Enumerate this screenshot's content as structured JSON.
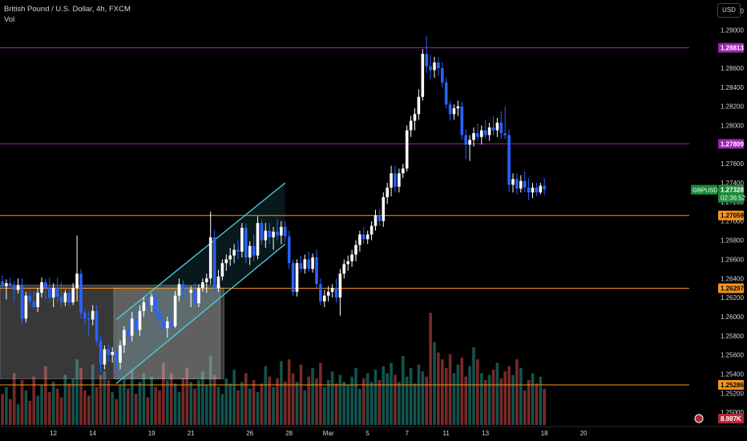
{
  "legend": {
    "symbol_line": "British Pound / U.S. Dollar, 4h, FXCM",
    "volume_label": "Vol"
  },
  "currency_button": "USD",
  "chart_data": {
    "type": "candlestick",
    "symbol": "GBPUSD",
    "interval": "4h",
    "y_range": [
      1.2485,
      1.2928
    ],
    "y_ticks": [
      "1.29200",
      "1.29000",
      "1.28800",
      "1.28600",
      "1.28400",
      "1.28200",
      "1.28000",
      "1.27800",
      "1.27600",
      "1.27400",
      "1.27200",
      "1.27000",
      "1.26800",
      "1.26600",
      "1.26400",
      "1.26200",
      "1.26000",
      "1.25800",
      "1.25600",
      "1.25400",
      "1.25200",
      "1.25000"
    ],
    "x_ticks": [
      {
        "label": "12",
        "index": 13
      },
      {
        "label": "14",
        "index": 23
      },
      {
        "label": "19",
        "index": 38
      },
      {
        "label": "21",
        "index": 48
      },
      {
        "label": "26",
        "index": 63
      },
      {
        "label": "28",
        "index": 73
      },
      {
        "label": "Mar",
        "index": 83
      },
      {
        "label": "5",
        "index": 93
      },
      {
        "label": "7",
        "index": 103
      },
      {
        "label": "11",
        "index": 113
      },
      {
        "label": "13",
        "index": 123
      },
      {
        "label": "18",
        "index": 138
      },
      {
        "label": "20",
        "index": 148
      }
    ],
    "horizontal_levels": [
      {
        "value": 1.28813,
        "label": "1.28813",
        "color": "#9c27b0"
      },
      {
        "value": 1.27809,
        "label": "1.27809",
        "color": "#9c27b0"
      },
      {
        "value": 1.27059,
        "label": "1.27059",
        "color": "#f7931a"
      },
      {
        "value": 1.26297,
        "label": "1.26297",
        "color": "#f7931a"
      },
      {
        "value": 1.25286,
        "label": "1.25286",
        "color": "#f7931a"
      }
    ],
    "last_price": {
      "symbol": "GBPUSD",
      "value": "1.27328",
      "countdown": "02:36:52",
      "color": "#1b8a3a"
    },
    "volume_last": {
      "value": "8.987K",
      "color": "#b22833"
    },
    "range_boxes": [
      {
        "from_index": 0,
        "to_index": 55,
        "top": 1.2633,
        "bottom": 1.2535
      },
      {
        "from_index": 29,
        "to_index": 56,
        "top": 1.263,
        "bottom": 1.2535
      }
    ],
    "channel": {
      "color": "#4dd0e1",
      "upper": [
        {
          "index": 29,
          "value": 1.2597
        },
        {
          "index": 72,
          "value": 1.274
        }
      ],
      "lower": [
        {
          "index": 29,
          "value": 1.253
        },
        {
          "index": 72,
          "value": 1.2676
        }
      ]
    },
    "candles": [
      {
        "o": 1.2637,
        "h": 1.2643,
        "l": 1.2628,
        "c": 1.2632
      },
      {
        "o": 1.2632,
        "h": 1.2639,
        "l": 1.2618,
        "c": 1.2635
      },
      {
        "o": 1.2635,
        "h": 1.2641,
        "l": 1.2629,
        "c": 1.2633
      },
      {
        "o": 1.2633,
        "h": 1.2637,
        "l": 1.2615,
        "c": 1.2628
      },
      {
        "o": 1.2628,
        "h": 1.264,
        "l": 1.2624,
        "c": 1.2633
      },
      {
        "o": 1.2633,
        "h": 1.264,
        "l": 1.2592,
        "c": 1.2598
      },
      {
        "o": 1.2598,
        "h": 1.2626,
        "l": 1.2594,
        "c": 1.2622
      },
      {
        "o": 1.2622,
        "h": 1.2627,
        "l": 1.2611,
        "c": 1.2616
      },
      {
        "o": 1.2616,
        "h": 1.2627,
        "l": 1.2608,
        "c": 1.261
      },
      {
        "o": 1.261,
        "h": 1.263,
        "l": 1.2605,
        "c": 1.2625
      },
      {
        "o": 1.2625,
        "h": 1.2641,
        "l": 1.262,
        "c": 1.2636
      },
      {
        "o": 1.2636,
        "h": 1.264,
        "l": 1.2618,
        "c": 1.263
      },
      {
        "o": 1.263,
        "h": 1.2641,
        "l": 1.2615,
        "c": 1.262
      },
      {
        "o": 1.262,
        "h": 1.2635,
        "l": 1.261,
        "c": 1.263
      },
      {
        "o": 1.263,
        "h": 1.2641,
        "l": 1.2615,
        "c": 1.2621
      },
      {
        "o": 1.2621,
        "h": 1.2636,
        "l": 1.2609,
        "c": 1.2615
      },
      {
        "o": 1.2615,
        "h": 1.2628,
        "l": 1.2611,
        "c": 1.2625
      },
      {
        "o": 1.2625,
        "h": 1.2631,
        "l": 1.261,
        "c": 1.2615
      },
      {
        "o": 1.2615,
        "h": 1.2635,
        "l": 1.2612,
        "c": 1.263
      },
      {
        "o": 1.263,
        "h": 1.2685,
        "l": 1.2616,
        "c": 1.2645
      },
      {
        "o": 1.2645,
        "h": 1.265,
        "l": 1.2598,
        "c": 1.2604
      },
      {
        "o": 1.2604,
        "h": 1.2608,
        "l": 1.2592,
        "c": 1.2598
      },
      {
        "o": 1.2598,
        "h": 1.2605,
        "l": 1.258,
        "c": 1.2597
      },
      {
        "o": 1.2597,
        "h": 1.2612,
        "l": 1.2591,
        "c": 1.2606
      },
      {
        "o": 1.2606,
        "h": 1.2612,
        "l": 1.257,
        "c": 1.2575
      },
      {
        "o": 1.2575,
        "h": 1.258,
        "l": 1.2542,
        "c": 1.255
      },
      {
        "o": 1.255,
        "h": 1.257,
        "l": 1.2545,
        "c": 1.2566
      },
      {
        "o": 1.2566,
        "h": 1.2572,
        "l": 1.2552,
        "c": 1.256
      },
      {
        "o": 1.256,
        "h": 1.2568,
        "l": 1.2552,
        "c": 1.2563
      },
      {
        "o": 1.2563,
        "h": 1.2567,
        "l": 1.254,
        "c": 1.2552
      },
      {
        "o": 1.2552,
        "h": 1.2575,
        "l": 1.2545,
        "c": 1.257
      },
      {
        "o": 1.257,
        "h": 1.259,
        "l": 1.2562,
        "c": 1.2586
      },
      {
        "o": 1.2586,
        "h": 1.2598,
        "l": 1.2575,
        "c": 1.258
      },
      {
        "o": 1.258,
        "h": 1.2605,
        "l": 1.2574,
        "c": 1.2598
      },
      {
        "o": 1.2598,
        "h": 1.2608,
        "l": 1.2582,
        "c": 1.2586
      },
      {
        "o": 1.2586,
        "h": 1.2612,
        "l": 1.258,
        "c": 1.2606
      },
      {
        "o": 1.2606,
        "h": 1.262,
        "l": 1.26,
        "c": 1.2615
      },
      {
        "o": 1.2615,
        "h": 1.2626,
        "l": 1.261,
        "c": 1.2612
      },
      {
        "o": 1.2612,
        "h": 1.2624,
        "l": 1.2605,
        "c": 1.2621
      },
      {
        "o": 1.2621,
        "h": 1.2626,
        "l": 1.2598,
        "c": 1.2604
      },
      {
        "o": 1.2604,
        "h": 1.261,
        "l": 1.259,
        "c": 1.2596
      },
      {
        "o": 1.2596,
        "h": 1.26,
        "l": 1.2584,
        "c": 1.2588
      },
      {
        "o": 1.2588,
        "h": 1.26,
        "l": 1.2578,
        "c": 1.2595
      },
      {
        "o": 1.2595,
        "h": 1.2603,
        "l": 1.2584,
        "c": 1.259
      },
      {
        "o": 1.259,
        "h": 1.2627,
        "l": 1.2588,
        "c": 1.2622
      },
      {
        "o": 1.2622,
        "h": 1.264,
        "l": 1.2616,
        "c": 1.2634
      },
      {
        "o": 1.2634,
        "h": 1.2638,
        "l": 1.2618,
        "c": 1.2626
      },
      {
        "o": 1.2626,
        "h": 1.2633,
        "l": 1.2619,
        "c": 1.2625
      },
      {
        "o": 1.2625,
        "h": 1.2632,
        "l": 1.261,
        "c": 1.2628
      },
      {
        "o": 1.2628,
        "h": 1.2635,
        "l": 1.2611,
        "c": 1.2614
      },
      {
        "o": 1.2614,
        "h": 1.2634,
        "l": 1.261,
        "c": 1.263
      },
      {
        "o": 1.263,
        "h": 1.264,
        "l": 1.2626,
        "c": 1.2636
      },
      {
        "o": 1.2636,
        "h": 1.2645,
        "l": 1.2625,
        "c": 1.264
      },
      {
        "o": 1.264,
        "h": 1.271,
        "l": 1.2634,
        "c": 1.2683
      },
      {
        "o": 1.2683,
        "h": 1.2691,
        "l": 1.2624,
        "c": 1.263
      },
      {
        "o": 1.263,
        "h": 1.2649,
        "l": 1.2626,
        "c": 1.2642
      },
      {
        "o": 1.2642,
        "h": 1.266,
        "l": 1.2638,
        "c": 1.2656
      },
      {
        "o": 1.2656,
        "h": 1.2665,
        "l": 1.2648,
        "c": 1.266
      },
      {
        "o": 1.266,
        "h": 1.2672,
        "l": 1.2653,
        "c": 1.2664
      },
      {
        "o": 1.2664,
        "h": 1.2676,
        "l": 1.2656,
        "c": 1.267
      },
      {
        "o": 1.267,
        "h": 1.268,
        "l": 1.266,
        "c": 1.2668
      },
      {
        "o": 1.2668,
        "h": 1.2698,
        "l": 1.2662,
        "c": 1.2693
      },
      {
        "o": 1.2693,
        "h": 1.2697,
        "l": 1.2656,
        "c": 1.2662
      },
      {
        "o": 1.2662,
        "h": 1.2679,
        "l": 1.2654,
        "c": 1.2674
      },
      {
        "o": 1.2674,
        "h": 1.2686,
        "l": 1.2658,
        "c": 1.2664
      },
      {
        "o": 1.2664,
        "h": 1.2705,
        "l": 1.266,
        "c": 1.2698
      },
      {
        "o": 1.2698,
        "h": 1.2702,
        "l": 1.2675,
        "c": 1.268
      },
      {
        "o": 1.268,
        "h": 1.2698,
        "l": 1.2672,
        "c": 1.269
      },
      {
        "o": 1.269,
        "h": 1.2698,
        "l": 1.2676,
        "c": 1.2683
      },
      {
        "o": 1.2683,
        "h": 1.2694,
        "l": 1.267,
        "c": 1.2689
      },
      {
        "o": 1.2689,
        "h": 1.2702,
        "l": 1.268,
        "c": 1.2685
      },
      {
        "o": 1.2685,
        "h": 1.27,
        "l": 1.2676,
        "c": 1.2694
      },
      {
        "o": 1.2694,
        "h": 1.27,
        "l": 1.2678,
        "c": 1.2684
      },
      {
        "o": 1.2684,
        "h": 1.269,
        "l": 1.265,
        "c": 1.2656
      },
      {
        "o": 1.2656,
        "h": 1.266,
        "l": 1.2622,
        "c": 1.2626
      },
      {
        "o": 1.2626,
        "h": 1.266,
        "l": 1.2621,
        "c": 1.2656
      },
      {
        "o": 1.2656,
        "h": 1.2664,
        "l": 1.2646,
        "c": 1.265
      },
      {
        "o": 1.265,
        "h": 1.2665,
        "l": 1.2645,
        "c": 1.266
      },
      {
        "o": 1.266,
        "h": 1.2668,
        "l": 1.2647,
        "c": 1.265
      },
      {
        "o": 1.265,
        "h": 1.2666,
        "l": 1.2646,
        "c": 1.2662
      },
      {
        "o": 1.2662,
        "h": 1.267,
        "l": 1.263,
        "c": 1.2634
      },
      {
        "o": 1.2634,
        "h": 1.264,
        "l": 1.2612,
        "c": 1.2616
      },
      {
        "o": 1.2616,
        "h": 1.2628,
        "l": 1.261,
        "c": 1.2622
      },
      {
        "o": 1.2622,
        "h": 1.2632,
        "l": 1.2616,
        "c": 1.2626
      },
      {
        "o": 1.2626,
        "h": 1.2634,
        "l": 1.262,
        "c": 1.263
      },
      {
        "o": 1.263,
        "h": 1.264,
        "l": 1.2615,
        "c": 1.262
      },
      {
        "o": 1.262,
        "h": 1.265,
        "l": 1.2601,
        "c": 1.2645
      },
      {
        "o": 1.2645,
        "h": 1.266,
        "l": 1.264,
        "c": 1.2655
      },
      {
        "o": 1.2655,
        "h": 1.2664,
        "l": 1.2648,
        "c": 1.2658
      },
      {
        "o": 1.2658,
        "h": 1.267,
        "l": 1.2652,
        "c": 1.2665
      },
      {
        "o": 1.2665,
        "h": 1.268,
        "l": 1.2658,
        "c": 1.2675
      },
      {
        "o": 1.2675,
        "h": 1.269,
        "l": 1.2668,
        "c": 1.2686
      },
      {
        "o": 1.2686,
        "h": 1.2694,
        "l": 1.2676,
        "c": 1.2681
      },
      {
        "o": 1.2681,
        "h": 1.269,
        "l": 1.2676,
        "c": 1.2686
      },
      {
        "o": 1.2686,
        "h": 1.27,
        "l": 1.268,
        "c": 1.2695
      },
      {
        "o": 1.2695,
        "h": 1.2712,
        "l": 1.269,
        "c": 1.2706
      },
      {
        "o": 1.2706,
        "h": 1.2712,
        "l": 1.2695,
        "c": 1.27
      },
      {
        "o": 1.27,
        "h": 1.273,
        "l": 1.2694,
        "c": 1.2725
      },
      {
        "o": 1.2725,
        "h": 1.274,
        "l": 1.2718,
        "c": 1.2735
      },
      {
        "o": 1.2735,
        "h": 1.2758,
        "l": 1.2726,
        "c": 1.275
      },
      {
        "o": 1.275,
        "h": 1.2758,
        "l": 1.273,
        "c": 1.2736
      },
      {
        "o": 1.2736,
        "h": 1.2755,
        "l": 1.273,
        "c": 1.275
      },
      {
        "o": 1.275,
        "h": 1.276,
        "l": 1.2745,
        "c": 1.2755
      },
      {
        "o": 1.2755,
        "h": 1.28,
        "l": 1.2752,
        "c": 1.2795
      },
      {
        "o": 1.2795,
        "h": 1.281,
        "l": 1.2788,
        "c": 1.2805
      },
      {
        "o": 1.2805,
        "h": 1.2818,
        "l": 1.2795,
        "c": 1.2812
      },
      {
        "o": 1.2812,
        "h": 1.2838,
        "l": 1.2806,
        "c": 1.283
      },
      {
        "o": 1.283,
        "h": 1.288,
        "l": 1.2826,
        "c": 1.2875
      },
      {
        "o": 1.2875,
        "h": 1.2894,
        "l": 1.2855,
        "c": 1.2862
      },
      {
        "o": 1.2862,
        "h": 1.2874,
        "l": 1.2848,
        "c": 1.2858
      },
      {
        "o": 1.2858,
        "h": 1.2872,
        "l": 1.285,
        "c": 1.2866
      },
      {
        "o": 1.2866,
        "h": 1.2872,
        "l": 1.2852,
        "c": 1.286
      },
      {
        "o": 1.286,
        "h": 1.2866,
        "l": 1.284,
        "c": 1.2845
      },
      {
        "o": 1.2845,
        "h": 1.285,
        "l": 1.2818,
        "c": 1.2822
      },
      {
        "o": 1.2822,
        "h": 1.2826,
        "l": 1.2805,
        "c": 1.2812
      },
      {
        "o": 1.2812,
        "h": 1.2822,
        "l": 1.2806,
        "c": 1.2818
      },
      {
        "o": 1.2818,
        "h": 1.2826,
        "l": 1.281,
        "c": 1.282
      },
      {
        "o": 1.282,
        "h": 1.2825,
        "l": 1.2785,
        "c": 1.279
      },
      {
        "o": 1.279,
        "h": 1.2796,
        "l": 1.2765,
        "c": 1.278
      },
      {
        "o": 1.278,
        "h": 1.279,
        "l": 1.2763,
        "c": 1.2785
      },
      {
        "o": 1.2785,
        "h": 1.2798,
        "l": 1.2778,
        "c": 1.2792
      },
      {
        "o": 1.2792,
        "h": 1.2802,
        "l": 1.2784,
        "c": 1.2788
      },
      {
        "o": 1.2788,
        "h": 1.28,
        "l": 1.278,
        "c": 1.2795
      },
      {
        "o": 1.2795,
        "h": 1.2806,
        "l": 1.2786,
        "c": 1.279
      },
      {
        "o": 1.279,
        "h": 1.2803,
        "l": 1.2784,
        "c": 1.2798
      },
      {
        "o": 1.2798,
        "h": 1.281,
        "l": 1.279,
        "c": 1.2795
      },
      {
        "o": 1.2795,
        "h": 1.2808,
        "l": 1.2788,
        "c": 1.2803
      },
      {
        "o": 1.2803,
        "h": 1.2815,
        "l": 1.2786,
        "c": 1.2792
      },
      {
        "o": 1.2792,
        "h": 1.282,
        "l": 1.2786,
        "c": 1.279
      },
      {
        "o": 1.279,
        "h": 1.2796,
        "l": 1.273,
        "c": 1.2738
      },
      {
        "o": 1.2738,
        "h": 1.275,
        "l": 1.273,
        "c": 1.2744
      },
      {
        "o": 1.2744,
        "h": 1.275,
        "l": 1.2728,
        "c": 1.2734
      },
      {
        "o": 1.2734,
        "h": 1.2748,
        "l": 1.273,
        "c": 1.2742
      },
      {
        "o": 1.2742,
        "h": 1.2752,
        "l": 1.273,
        "c": 1.2735
      },
      {
        "o": 1.2735,
        "h": 1.2745,
        "l": 1.2722,
        "c": 1.273
      },
      {
        "o": 1.273,
        "h": 1.274,
        "l": 1.2724,
        "c": 1.2735
      },
      {
        "o": 1.2735,
        "h": 1.274,
        "l": 1.2726,
        "c": 1.273
      },
      {
        "o": 1.273,
        "h": 1.274,
        "l": 1.2728,
        "c": 1.2737
      },
      {
        "o": 1.2737,
        "h": 1.2745,
        "l": 1.2727,
        "c": 1.2733
      }
    ],
    "volumes": [
      18,
      22,
      15,
      30,
      12,
      26,
      20,
      14,
      28,
      17,
      23,
      34,
      19,
      25,
      21,
      16,
      29,
      24,
      27,
      38,
      33,
      20,
      17,
      35,
      22,
      29,
      31,
      26,
      19,
      15,
      23,
      27,
      21,
      32,
      18,
      25,
      30,
      16,
      28,
      22,
      20,
      36,
      26,
      30,
      24,
      19,
      27,
      33,
      25,
      21,
      26,
      31,
      23,
      40,
      29,
      22,
      18,
      27,
      24,
      32,
      20,
      25,
      30,
      21,
      26,
      19,
      24,
      34,
      28,
      22,
      27,
      37,
      25,
      38,
      30,
      25,
      35,
      20,
      28,
      33,
      27,
      36,
      22,
      26,
      31,
      24,
      29,
      25,
      23,
      28,
      33,
      21,
      27,
      30,
      25,
      32,
      26,
      34,
      30,
      36,
      29,
      25,
      40,
      28,
      33,
      24,
      35,
      31,
      28,
      65,
      48,
      42,
      38,
      33,
      41,
      30,
      35,
      39,
      28,
      34,
      45,
      38,
      30,
      26,
      29,
      32,
      36,
      27,
      31,
      34,
      29,
      38,
      33,
      20,
      26,
      30,
      24,
      28,
      21,
      10
    ]
  }
}
